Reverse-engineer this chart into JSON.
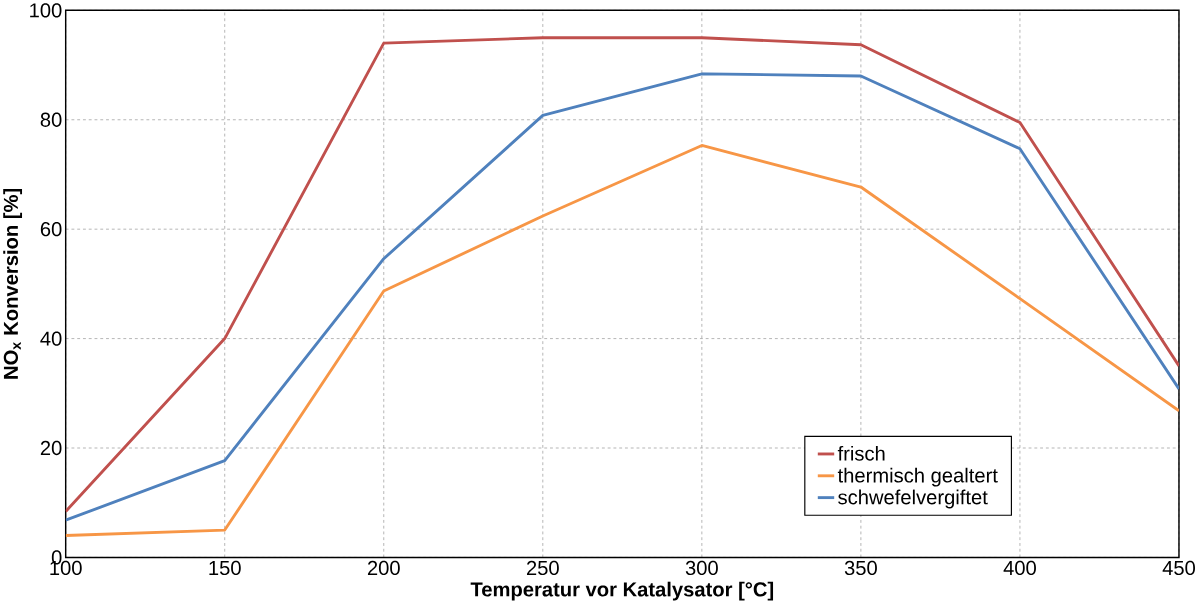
{
  "chart_data": {
    "type": "line",
    "xlabel": "Temperatur vor Katalysator [°C]",
    "ylabel": "NO$_{x}$ Konversion [%]",
    "x": [
      100,
      150,
      200,
      250,
      300,
      350,
      400,
      450
    ],
    "series": [
      {
        "name": "frisch",
        "color": "#c0504d",
        "values": [
          8.4,
          40,
          94,
          95,
          95,
          93.7,
          79.5,
          35
        ]
      },
      {
        "name": "thermisch gealtert",
        "color": "#f79646",
        "values": [
          4,
          5,
          48.7,
          62.4,
          75.3,
          67.7,
          47.3,
          26.8
        ]
      },
      {
        "name": "schwefelvergiftet",
        "color": "#4f81bd",
        "values": [
          6.8,
          17.7,
          54.6,
          80.8,
          88.4,
          88,
          74.7,
          30.8
        ]
      }
    ],
    "xlim": [
      100,
      450
    ],
    "ylim": [
      0,
      100
    ],
    "xticks": [
      100,
      150,
      200,
      250,
      300,
      350,
      400,
      450
    ],
    "yticks": [
      0,
      20,
      40,
      60,
      80,
      100
    ],
    "grid": true,
    "legend": "bottom right",
    "marker": "none",
    "line_style": "solid"
  }
}
